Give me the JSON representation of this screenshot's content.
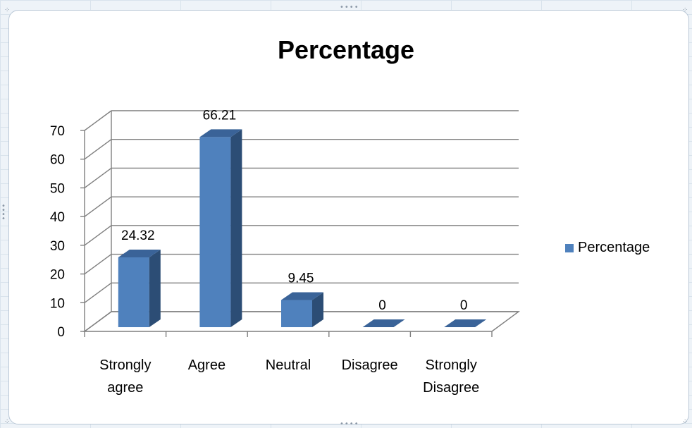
{
  "chart_data": {
    "type": "bar",
    "title": "Percentage",
    "categories": [
      "Strongly agree",
      "Agree",
      "Neutral",
      "Disagree",
      "Strongly Disagree"
    ],
    "category_lines": [
      [
        "Strongly",
        "agree"
      ],
      [
        "Agree"
      ],
      [
        "Neutral"
      ],
      [
        "Disagree"
      ],
      [
        "Strongly",
        "Disagree"
      ]
    ],
    "series": [
      {
        "name": "Percentage",
        "values": [
          24.32,
          66.21,
          9.45,
          0,
          0
        ],
        "labels": [
          "24.32",
          "66.21",
          "9.45",
          "0",
          "0"
        ]
      }
    ],
    "yticks": [
      "0",
      "10",
      "20",
      "30",
      "40",
      "50",
      "60",
      "70"
    ],
    "ylim": [
      0,
      70
    ],
    "xlabel": "",
    "ylabel": "",
    "grid": true,
    "style": "3d-column",
    "legend": "right",
    "colors": {
      "bar_front": "#4f81bd",
      "bar_side": "#2c4d75",
      "bar_top": "#3a6398"
    }
  }
}
